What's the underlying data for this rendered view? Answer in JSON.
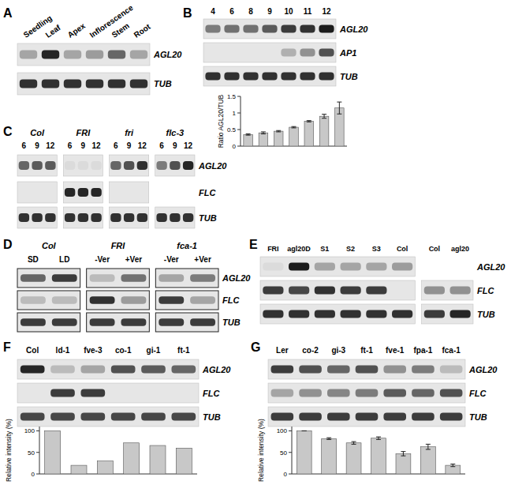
{
  "figure": {
    "panels": [
      {
        "label": "A",
        "rows": [
          "AGL20",
          "TUB"
        ],
        "groups": [
          {
            "title": null,
            "lanes": [
              "Seedling",
              "Leaf",
              "Apex",
              "Inflorescence",
              "Stem",
              "Root"
            ],
            "bands": [
              [
                0.3,
                0.9,
                0.3,
                0.35,
                0.6,
                0.3
              ],
              [
                0.85,
                0.85,
                0.85,
                0.85,
                0.85,
                0.85
              ]
            ]
          }
        ]
      },
      {
        "label": "B",
        "rows": [
          "AGL20",
          "AP1",
          "TUB"
        ],
        "groups": [
          {
            "title": null,
            "lanes": [
              "4",
              "6",
              "8",
              "9",
              "10",
              "11",
              "12"
            ],
            "bands": [
              [
                0.5,
                0.55,
                0.55,
                0.65,
                0.8,
                0.85,
                0.95
              ],
              [
                0,
                0,
                0,
                0,
                0.25,
                0.4,
                0.7
              ],
              [
                0.85,
                0.85,
                0.85,
                0.85,
                0.85,
                0.85,
                0.85
              ]
            ]
          }
        ]
      },
      {
        "label": "C",
        "rows": [
          "AGL20",
          "FLC",
          "TUB"
        ],
        "groups": [
          {
            "title": "Col",
            "lanes": [
              "6",
              "9",
              "12"
            ],
            "bands": [
              [
                0.6,
                0.65,
                0.65
              ],
              [
                0,
                0,
                0
              ],
              [
                0.85,
                0.85,
                0.85
              ]
            ]
          },
          {
            "title": "FRI",
            "lanes": [
              "6",
              "9",
              "12"
            ],
            "bands": [
              [
                0.05,
                0.05,
                0.05
              ],
              [
                0.9,
                0.9,
                0.9
              ],
              [
                0.85,
                0.85,
                0.85
              ]
            ]
          },
          {
            "title": "fri",
            "lanes": [
              "6",
              "9",
              "12"
            ],
            "bands": [
              [
                0.6,
                0.7,
                0.85
              ],
              [
                0,
                0,
                0
              ],
              [
                0.85,
                0.85,
                0.85
              ]
            ]
          },
          {
            "title": "flc-3",
            "lanes": [
              "6",
              "9",
              "12"
            ],
            "bands": [
              [
                0.5,
                0.7,
                0.9
              ],
              null,
              [
                0.85,
                0.85,
                0.85
              ]
            ]
          }
        ]
      },
      {
        "label": "D",
        "rows": [
          "AGL20",
          "FLC",
          "TUB"
        ],
        "groups": [
          {
            "title": "Col",
            "lanes": [
              "SD",
              "LD"
            ],
            "bands": [
              [
                0.6,
                0.8
              ],
              [
                0.2,
                0.2
              ],
              [
                0.8,
                0.8
              ]
            ]
          },
          {
            "title": "FRI",
            "lanes": [
              "-Ver",
              "+Ver"
            ],
            "bands": [
              [
                0.2,
                0.55
              ],
              [
                0.85,
                0.35
              ],
              [
                0.8,
                0.8
              ]
            ]
          },
          {
            "title": "fca-1",
            "lanes": [
              "-Ver",
              "+Ver"
            ],
            "bands": [
              [
                0.3,
                0.5
              ],
              [
                0.8,
                0.3
              ],
              [
                0.8,
                0.8
              ]
            ]
          }
        ]
      },
      {
        "label": "E",
        "rows": [
          "AGL20",
          "FLC",
          "TUB"
        ],
        "groups": [
          {
            "title": null,
            "lanes": [
              "FRI",
              "agl20D",
              "S1",
              "S2",
              "S3",
              "Col"
            ],
            "bands": [
              [
                0.05,
                0.95,
                0.3,
                0.3,
                0.3,
                0.35
              ],
              [
                0.8,
                0.75,
                0.85,
                0.8,
                0.8,
                0
              ],
              [
                0.85,
                0.85,
                0.85,
                0.85,
                0.85,
                0.85
              ]
            ]
          },
          {
            "title": null,
            "lanes": [
              "Col",
              "agl20"
            ],
            "bands": [
              null,
              [
                0.4,
                0.4
              ],
              [
                0.8,
                0.9
              ]
            ]
          }
        ]
      },
      {
        "label": "F",
        "rows": [
          "AGL20",
          "FLC",
          "TUB"
        ],
        "groups": [
          {
            "title": null,
            "lanes": [
              "Col",
              "ld-1",
              "fve-3",
              "co-1",
              "gi-1",
              "ft-1"
            ],
            "bands": [
              [
                0.9,
                0.2,
                0.3,
                0.7,
                0.65,
                0.6
              ],
              [
                0,
                0.8,
                0.8,
                0,
                0,
                0
              ],
              [
                0.75,
                0.75,
                0.75,
                0.75,
                0.75,
                0.75
              ]
            ]
          }
        ]
      },
      {
        "label": "G",
        "rows": [
          "AGL20",
          "FLC",
          "TUB"
        ],
        "groups": [
          {
            "title": null,
            "lanes": [
              "Ler",
              "co-2",
              "gi-3",
              "ft-1",
              "fve-1",
              "fpa-1",
              "fca-1"
            ],
            "bands": [
              [
                0.8,
                0.7,
                0.6,
                0.7,
                0.4,
                0.5,
                0.2
              ],
              [
                0.3,
                0.4,
                0.45,
                0.5,
                0.65,
                0.6,
                0.7
              ],
              [
                0.8,
                0.8,
                0.8,
                0.8,
                0.8,
                0.8,
                0.8
              ]
            ]
          }
        ]
      }
    ]
  },
  "chart_data": [
    {
      "type": "bar",
      "y_label": "Ratio AGL20/TUB",
      "categories": [
        null,
        null,
        null,
        null,
        null,
        null,
        null
      ],
      "values": [
        0.35,
        0.4,
        0.45,
        0.57,
        0.75,
        0.9,
        1.15
      ],
      "errors": [
        0.02,
        0.03,
        0.02,
        0.02,
        0.02,
        0.06,
        0.18
      ],
      "color": "#c8c8c8",
      "ylim": [
        0,
        1.5
      ],
      "yticks": [
        0,
        0.5,
        1,
        1.5
      ]
    },
    {
      "type": "bar",
      "y_label": "Relative intensity (%)",
      "categories": [
        null,
        null,
        null,
        null,
        null,
        null
      ],
      "values": [
        100,
        20,
        30,
        72,
        66,
        60
      ],
      "color": "#c8c8c8",
      "ylim": [
        0,
        110
      ],
      "yticks": [
        0,
        50,
        100
      ]
    },
    {
      "type": "bar",
      "y_label": "Relative intensity (%)",
      "categories": [
        null,
        null,
        null,
        null,
        null,
        null,
        null
      ],
      "values": [
        100,
        82,
        72,
        83,
        47,
        63,
        20
      ],
      "errors": [
        0,
        2,
        3,
        3,
        5,
        6,
        3
      ],
      "color": "#c8c8c8",
      "ylim": [
        0,
        110
      ],
      "yticks": [
        0,
        50,
        100
      ]
    }
  ]
}
